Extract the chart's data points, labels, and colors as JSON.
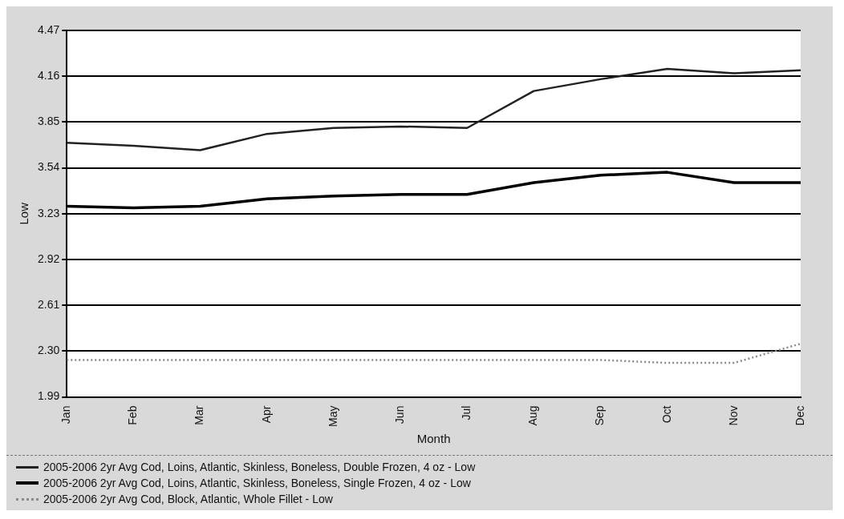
{
  "chart_data": {
    "type": "line",
    "xlabel": "Month",
    "ylabel": "Low",
    "categories": [
      "Jan",
      "Feb",
      "Mar",
      "Apr",
      "May",
      "Jun",
      "Jul",
      "Aug",
      "Sep",
      "Oct",
      "Nov",
      "Dec"
    ],
    "ylim": [
      1.99,
      4.47
    ],
    "yticks": [
      {
        "value": 1.99,
        "label": "1.99"
      },
      {
        "value": 2.3,
        "label": "2.30"
      },
      2.61,
      2.92,
      3.23,
      3.54,
      3.85,
      4.16,
      4.47
    ],
    "grid": "y",
    "legend": "bottom",
    "marker": "none",
    "series": [
      {
        "name": "2005-2006 2yr Avg Cod, Loins, Atlantic, Skinless, Boneless, Double Frozen, 4 oz - Low",
        "color": "#222222",
        "line_style": "solid",
        "values": [
          3.71,
          3.69,
          3.66,
          3.77,
          3.81,
          3.82,
          3.81,
          4.06,
          4.14,
          4.21,
          4.18,
          4.2
        ]
      },
      {
        "name": "2005-2006 2yr Avg Cod, Loins, Atlantic, Skinless, Boneless, Single Frozen, 4 oz - Low",
        "color": "#000000",
        "line_style": "solid",
        "values": [
          3.28,
          3.27,
          3.28,
          3.33,
          3.35,
          3.36,
          3.36,
          3.44,
          3.49,
          3.51,
          3.44,
          3.44
        ]
      },
      {
        "name": "2005-2006 2yr Avg Cod, Block, Atlantic, Whole Fillet - Low",
        "color": "#8a8a8a",
        "line_style": "dotted",
        "values": [
          2.24,
          2.24,
          2.24,
          2.24,
          2.24,
          2.24,
          2.24,
          2.24,
          2.24,
          2.22,
          2.22,
          2.35
        ]
      }
    ]
  }
}
